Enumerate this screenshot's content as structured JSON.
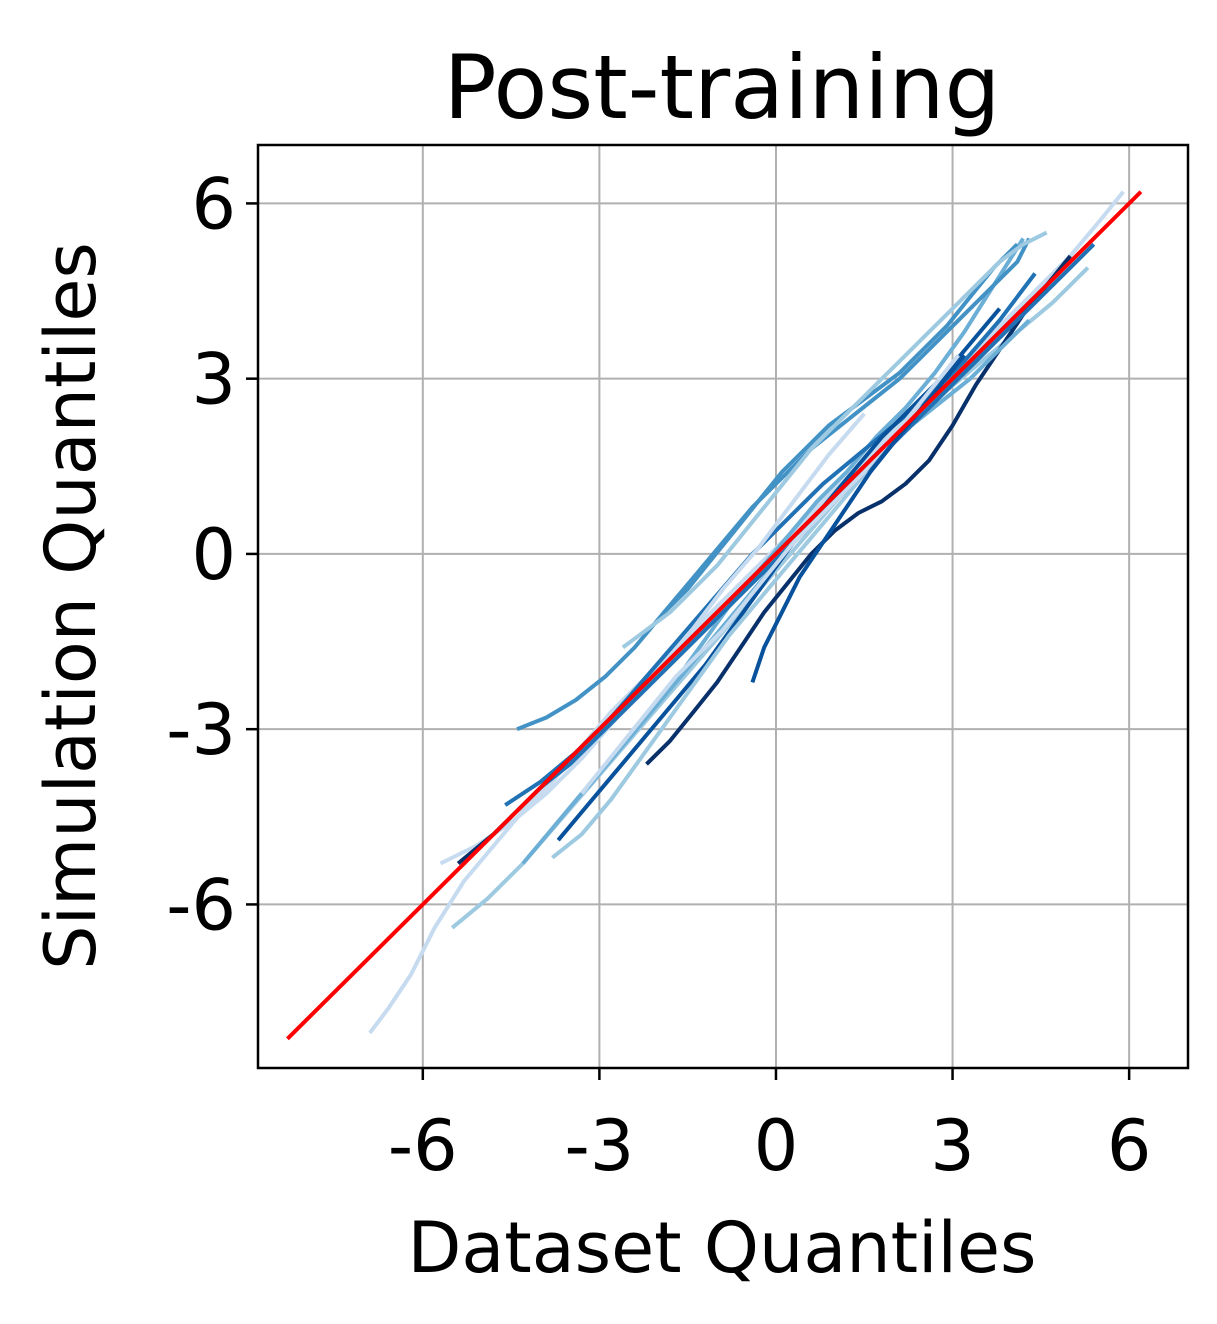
{
  "chart_data": {
    "type": "line",
    "title": "Post-training",
    "xlabel": "Dataset Quantiles",
    "ylabel": "Simulation Quantiles",
    "xlim": [
      -8.8,
      7.0
    ],
    "ylim": [
      -8.8,
      7.0
    ],
    "xticks": [
      -6,
      -3,
      0,
      3,
      6
    ],
    "yticks": [
      -6,
      -3,
      0,
      3,
      6
    ],
    "xtick_labels": [
      "-6",
      "-3",
      "0",
      "3",
      "6"
    ],
    "ytick_labels": [
      "-6",
      "-3",
      "0",
      "3",
      "6"
    ],
    "grid": true,
    "legend": "none",
    "reference_line": {
      "x": [
        -8.3,
        6.2
      ],
      "y": [
        -8.3,
        6.2
      ],
      "color": "#ff0000"
    },
    "series_colors": [
      "#c6dbef",
      "#9ecae1",
      "#6baed6",
      "#4292c6",
      "#2171b5",
      "#08519c",
      "#08306b"
    ],
    "series": [
      {
        "x": [
          -6.9,
          -6.6,
          -6.2,
          -5.8,
          -5.3,
          -4.8,
          -4.3,
          -3.8,
          -3.3,
          -2.8,
          -2.2,
          -1.6,
          -1.0,
          -0.4,
          0.2,
          0.8,
          1.4,
          2.0,
          2.6,
          3.2,
          3.8,
          4.4,
          5.0,
          5.5,
          5.9
        ],
        "y": [
          -8.2,
          -7.8,
          -7.2,
          -6.4,
          -5.6,
          -5.0,
          -4.4,
          -3.9,
          -3.3,
          -2.7,
          -2.1,
          -1.5,
          -0.9,
          -0.3,
          0.3,
          0.9,
          1.5,
          2.1,
          2.7,
          3.3,
          3.9,
          4.5,
          5.1,
          5.7,
          6.2
        ]
      },
      {
        "x": [
          -5.5,
          -4.9,
          -4.3,
          -3.7,
          -3.1,
          -2.5,
          -1.9,
          -1.3,
          -0.7,
          -0.1,
          0.5,
          1.1,
          1.7,
          2.3,
          2.9,
          3.5,
          4.1,
          4.7,
          5.3
        ],
        "y": [
          -6.4,
          -5.9,
          -5.3,
          -4.6,
          -3.9,
          -3.2,
          -2.5,
          -1.8,
          -1.1,
          -0.4,
          0.3,
          1.0,
          1.6,
          2.2,
          2.8,
          3.3,
          3.8,
          4.3,
          4.9
        ]
      },
      {
        "x": [
          -4.3,
          -3.8,
          -3.3,
          -2.8,
          -2.3,
          -1.8,
          -1.3,
          -0.8,
          -0.3,
          0.2,
          0.7,
          1.2,
          1.7,
          2.2,
          2.7,
          3.2,
          3.7,
          4.2
        ],
        "y": [
          -5.3,
          -4.7,
          -4.1,
          -3.5,
          -2.9,
          -2.3,
          -1.6,
          -0.9,
          -0.3,
          0.3,
          0.9,
          1.4,
          2.0,
          2.5,
          3.1,
          3.8,
          4.6,
          5.4
        ]
      },
      {
        "x": [
          -4.4,
          -3.9,
          -3.4,
          -2.9,
          -2.4,
          -1.9,
          -1.4,
          -0.9,
          -0.4,
          0.1,
          0.6,
          1.1,
          1.6,
          2.1,
          2.6,
          3.1,
          3.6,
          4.1,
          4.3
        ],
        "y": [
          -3.0,
          -2.8,
          -2.5,
          -2.1,
          -1.6,
          -1.0,
          -0.4,
          0.2,
          0.8,
          1.3,
          1.8,
          2.2,
          2.6,
          3.0,
          3.5,
          4.0,
          4.5,
          5.0,
          5.4
        ]
      },
      {
        "x": [
          -4.6,
          -4.0,
          -3.4,
          -2.8,
          -2.2,
          -1.6,
          -1.0,
          -0.4,
          0.2,
          0.8,
          1.4,
          2.0,
          2.6,
          3.2,
          3.8,
          4.4
        ],
        "y": [
          -4.3,
          -3.9,
          -3.4,
          -2.8,
          -2.1,
          -1.4,
          -0.7,
          0.0,
          0.6,
          1.2,
          1.7,
          2.2,
          2.7,
          3.3,
          4.0,
          4.8
        ]
      },
      {
        "x": [
          -3.7,
          -3.2,
          -2.7,
          -2.2,
          -1.7,
          -1.2,
          -0.7,
          -0.2,
          0.3,
          0.8,
          1.3,
          1.8,
          2.3,
          2.8,
          3.3,
          3.8
        ],
        "y": [
          -4.9,
          -4.3,
          -3.7,
          -3.1,
          -2.5,
          -1.9,
          -1.2,
          -0.5,
          0.2,
          0.8,
          1.4,
          2.0,
          2.5,
          3.0,
          3.6,
          4.2
        ]
      },
      {
        "x": [
          -2.2,
          -1.8,
          -1.4,
          -1.0,
          -0.6,
          -0.2,
          0.2,
          0.6,
          1.0,
          1.4,
          1.8,
          2.2,
          2.6,
          3.0,
          3.4,
          3.8,
          4.2,
          4.6,
          5.0
        ],
        "y": [
          -3.6,
          -3.2,
          -2.7,
          -2.2,
          -1.6,
          -1.0,
          -0.5,
          0.0,
          0.4,
          0.7,
          0.9,
          1.2,
          1.6,
          2.2,
          2.9,
          3.5,
          4.1,
          4.6,
          5.1
        ]
      },
      {
        "x": [
          -5.7,
          -5.1,
          -4.5,
          -3.9,
          -3.3,
          -2.7,
          -2.1,
          -1.5,
          -0.9,
          -0.3,
          0.3,
          0.9,
          1.5
        ],
        "y": [
          -5.3,
          -5.0,
          -4.6,
          -4.1,
          -3.5,
          -2.8,
          -2.1,
          -1.4,
          -0.6,
          0.1,
          0.9,
          1.7,
          2.4
        ]
      },
      {
        "x": [
          -3.8,
          -3.3,
          -2.8,
          -2.3,
          -1.8,
          -1.3,
          -0.8,
          -0.3,
          0.2,
          0.7,
          1.2,
          1.7,
          2.2,
          2.7,
          3.2,
          3.7
        ],
        "y": [
          -5.2,
          -4.8,
          -4.2,
          -3.5,
          -2.8,
          -2.1,
          -1.4,
          -0.8,
          -0.2,
          0.4,
          1.0,
          1.6,
          2.1,
          2.6,
          3.1,
          3.7
        ]
      },
      {
        "x": [
          -3.2,
          -2.7,
          -2.2,
          -1.7,
          -1.2,
          -0.7,
          -0.2,
          0.3,
          0.8,
          1.3,
          1.8,
          2.3,
          2.8,
          3.3,
          3.8,
          4.3
        ],
        "y": [
          -4.0,
          -3.4,
          -2.8,
          -2.2,
          -1.6,
          -1.0,
          -0.4,
          0.2,
          0.8,
          1.3,
          1.8,
          2.2,
          2.6,
          3.0,
          3.5,
          4.0
        ]
      },
      {
        "x": [
          -1.9,
          -1.5,
          -1.1,
          -0.7,
          -0.3,
          0.1,
          0.5,
          0.9,
          1.3,
          1.7,
          2.1,
          2.5,
          2.9,
          3.3,
          3.7,
          4.1
        ],
        "y": [
          -1.0,
          -0.6,
          -0.1,
          0.4,
          0.9,
          1.4,
          1.8,
          2.2,
          2.5,
          2.8,
          3.1,
          3.5,
          3.9,
          4.4,
          4.9,
          5.3
        ]
      },
      {
        "x": [
          -4.0,
          -3.5,
          -3.0,
          -2.5,
          -2.0,
          -1.5,
          -1.0,
          -0.5,
          0.0,
          0.5,
          1.0,
          1.5,
          2.0,
          2.5,
          3.0,
          3.5,
          4.0,
          4.5,
          5.0,
          5.4
        ],
        "y": [
          -4.0,
          -3.6,
          -3.1,
          -2.6,
          -2.1,
          -1.6,
          -1.1,
          -0.6,
          -0.1,
          0.4,
          0.9,
          1.4,
          1.9,
          2.4,
          2.9,
          3.4,
          3.9,
          4.4,
          4.9,
          5.3
        ]
      },
      {
        "x": [
          -0.4,
          -0.2,
          0.1,
          0.4,
          0.8,
          1.2,
          1.6,
          2.0,
          2.4,
          2.8,
          3.2
        ],
        "y": [
          -2.2,
          -1.6,
          -1.0,
          -0.4,
          0.2,
          0.8,
          1.4,
          1.9,
          2.4,
          2.9,
          3.4
        ]
      },
      {
        "x": [
          -5.4,
          -4.8,
          -4.2,
          -3.6,
          -3.0,
          -2.4,
          -1.8,
          -1.2,
          -0.6,
          0.0,
          0.6,
          1.2,
          1.8,
          2.4,
          3.0,
          3.6,
          4.2,
          4.8
        ],
        "y": [
          -5.3,
          -4.8,
          -4.2,
          -3.6,
          -3.0,
          -2.4,
          -1.8,
          -1.2,
          -0.6,
          0.0,
          0.6,
          1.2,
          1.8,
          2.4,
          3.0,
          3.6,
          4.2,
          4.8
        ]
      },
      {
        "x": [
          -3.3,
          -2.9,
          -2.5,
          -2.1,
          -1.7,
          -1.3,
          -0.9,
          -0.5,
          -0.1,
          0.3,
          0.7,
          1.1,
          1.5,
          1.9,
          2.3,
          2.7,
          3.1
        ],
        "y": [
          -4.1,
          -3.6,
          -3.1,
          -2.6,
          -2.1,
          -1.7,
          -1.3,
          -0.8,
          -0.3,
          0.2,
          0.6,
          1.0,
          1.4,
          1.9,
          2.4,
          2.9,
          3.4
        ]
      },
      {
        "x": [
          -2.6,
          -2.2,
          -1.8,
          -1.4,
          -1.0,
          -0.6,
          -0.2,
          0.2,
          0.6,
          1.0,
          1.4,
          1.8,
          2.2,
          2.6,
          3.0,
          3.4,
          3.8,
          4.2,
          4.6
        ],
        "y": [
          -1.6,
          -1.3,
          -1.0,
          -0.6,
          -0.2,
          0.3,
          0.8,
          1.3,
          1.8,
          2.2,
          2.6,
          3.0,
          3.4,
          3.8,
          4.2,
          4.6,
          5.0,
          5.3,
          5.5
        ]
      }
    ]
  }
}
